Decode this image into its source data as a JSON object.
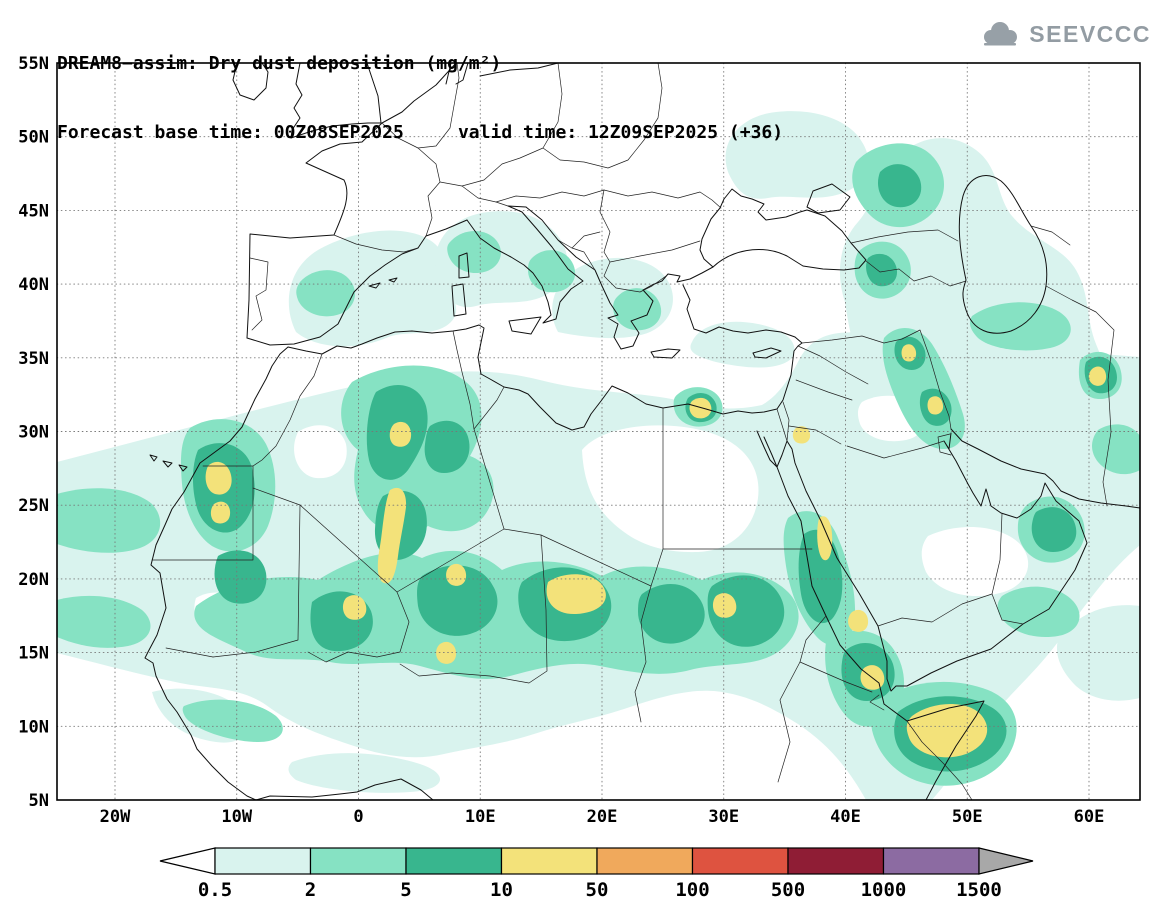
{
  "header": {
    "title_line1": "DREAM8−assim: Dry dust deposition (mg/m²)",
    "title_line2": "Forecast base time: 00Z08SEP2025     valid time: 12Z09SEP2025 (+36)",
    "logo_text": "SEEVCCC"
  },
  "map": {
    "lat_ticks": [
      "55N",
      "50N",
      "45N",
      "40N",
      "35N",
      "30N",
      "25N",
      "20N",
      "15N",
      "10N",
      "5N"
    ],
    "lon_ticks": [
      "20W",
      "10W",
      "0",
      "10E",
      "20E",
      "30E",
      "40E",
      "50E",
      "60E"
    ]
  },
  "legend": {
    "tick_labels": [
      "0.5",
      "2",
      "5",
      "10",
      "50",
      "100",
      "500",
      "1000",
      "1500"
    ],
    "segment_colors": [
      "#ffffff",
      "#d9f3ee",
      "#86e2c3",
      "#38b68e",
      "#f3e27a",
      "#f0a95c",
      "#de5340",
      "#8f1d35",
      "#8c6ba2",
      "#a8a8a8"
    ]
  },
  "chart_data": {
    "type": "heatmap",
    "subtype": "filled-contour-forecast-map",
    "title": "DREAM8−assim: Dry dust deposition (mg/m²)",
    "model": "DREAM8-assim",
    "variable": "Dry dust deposition",
    "units": "mg/m²",
    "forecast_base_time": "00Z08SEP2025",
    "valid_time": "12Z09SEP2025",
    "forecast_step_hours": 36,
    "x_axis": {
      "label": "longitude",
      "ticks": [
        "20W",
        "10W",
        "0",
        "10E",
        "20E",
        "30E",
        "40E",
        "50E",
        "60E"
      ]
    },
    "y_axis": {
      "label": "latitude",
      "ticks": [
        "55N",
        "50N",
        "45N",
        "40N",
        "35N",
        "30N",
        "25N",
        "20N",
        "15N",
        "10N",
        "5N"
      ]
    },
    "contour_levels_mg_m2": [
      0.5,
      2,
      5,
      10,
      50,
      100,
      500,
      1000,
      1500
    ],
    "level_colors": [
      "#ffffff",
      "#d9f3ee",
      "#86e2c3",
      "#38b68e",
      "#f3e27a",
      "#f0a95c",
      "#de5340",
      "#8f1d35",
      "#8c6ba2",
      "#a8a8a8"
    ],
    "observed_max_bin": "10–50 mg/m²",
    "high_deposition_areas": [
      {
        "region": "Atlantic coast of Morocco / Western Sahara",
        "peak_bin": "10–50"
      },
      {
        "region": "Central Algeria (Hoggar)",
        "peak_bin": "10–50"
      },
      {
        "region": "Mali / Niger Sahel belt",
        "peak_bin": "10–50"
      },
      {
        "region": "Chad (Bodélé depression)",
        "peak_bin": "10–50"
      },
      {
        "region": "Western and eastern Sudan",
        "peak_bin": "10–50"
      },
      {
        "region": "Nile delta, Egypt",
        "peak_bin": "10–50"
      },
      {
        "region": "Red Sea coast (Sudan / Eritrea)",
        "peak_bin": "10–50"
      },
      {
        "region": "Bab-el-Mandeb / Gulf of Aden / northern Somalia",
        "peak_bin": "10–50"
      },
      {
        "region": "Zagros foothills (Iraq / Iran border)",
        "peak_bin": "10–50"
      },
      {
        "region": "East of Caspian Sea",
        "peak_bin": "10–50"
      },
      {
        "region": "NW of Caspian (lower Volga steppe)",
        "peak_bin": "5–10"
      },
      {
        "region": "Oman coast",
        "peak_bin": "5–10"
      }
    ],
    "background_coverage_bins": [
      "0.5–2",
      "2–5"
    ]
  }
}
